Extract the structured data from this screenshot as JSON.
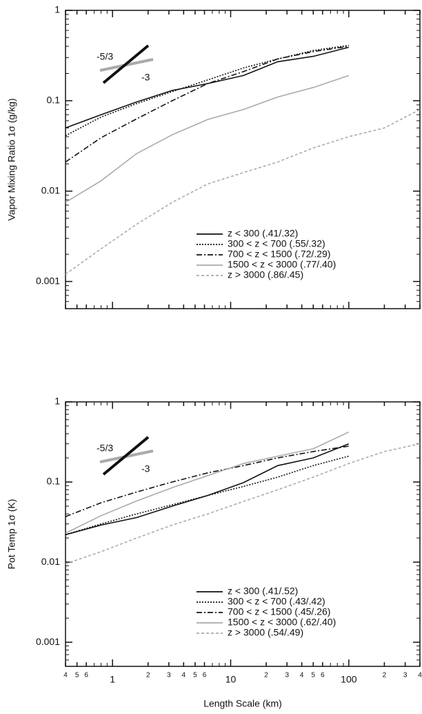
{
  "chart_data": [
    {
      "type": "line",
      "log_x": true,
      "log_y": true,
      "ylabel": "Vapor Mixing Ratio 1σ  (g/kg)",
      "slope_labels": [
        "-5/3",
        "-3"
      ],
      "xlim": [
        0.4,
        400
      ],
      "ylim": [
        0.0005,
        1
      ],
      "yticks": [
        0.001,
        0.01,
        0.1,
        1
      ],
      "x": [
        0.4,
        0.8,
        1.6,
        3.2,
        6.4,
        12.8,
        25,
        50,
        100,
        200,
        400
      ],
      "series": [
        {
          "name": "z < 300 (.41/.32)",
          "color": "#111111",
          "dash": "none",
          "values": [
            0.05,
            0.07,
            0.097,
            0.13,
            0.155,
            0.19,
            0.27,
            0.31,
            0.39,
            null,
            null
          ]
        },
        {
          "name": "300 <  z < 700 (.55/.32)",
          "color": "#111111",
          "dash": "2,2",
          "values": [
            0.041,
            0.066,
            0.093,
            0.126,
            0.17,
            0.23,
            0.29,
            0.36,
            0.41,
            null,
            null
          ]
        },
        {
          "name": "700 < z < 1500 (.72/.29)",
          "color": "#111111",
          "dash": "8,3,2,3",
          "values": [
            0.021,
            0.039,
            0.063,
            0.1,
            0.155,
            0.21,
            0.29,
            0.35,
            0.4,
            null,
            null
          ]
        },
        {
          "name": "1500 < z < 3000 (.77/.40)",
          "color": "#aaaaaa",
          "dash": "none",
          "values": [
            0.0075,
            0.013,
            0.026,
            0.042,
            0.062,
            0.08,
            0.11,
            0.14,
            0.19,
            null,
            null
          ]
        },
        {
          "name": "z > 3000 (.86/.45)",
          "color": "#aaaaaa",
          "dash": "4,3",
          "values": [
            0.0012,
            0.0023,
            0.0043,
            0.0075,
            0.012,
            0.016,
            0.021,
            0.03,
            0.04,
            0.05,
            0.08
          ]
        }
      ]
    },
    {
      "type": "line",
      "log_x": true,
      "log_y": true,
      "ylabel": "Pot Temp  1σ  (K)",
      "xlabel": "Length Scale (km)",
      "slope_labels": [
        "-5/3",
        "-3"
      ],
      "xlim": [
        0.4,
        400
      ],
      "ylim": [
        0.0005,
        1
      ],
      "yticks": [
        0.001,
        0.01,
        0.1,
        1
      ],
      "xticks": [
        {
          "value": 0.4,
          "label": "4"
        },
        {
          "value": 0.5,
          "label": "5"
        },
        {
          "value": 0.6,
          "label": "6"
        },
        1,
        2,
        3,
        4,
        5,
        6,
        10,
        {
          "value": 20,
          "label": "2"
        },
        {
          "value": 30,
          "label": "3"
        },
        {
          "value": 40,
          "label": "4"
        },
        {
          "value": 50,
          "label": "5"
        },
        {
          "value": 60,
          "label": "6"
        },
        100,
        {
          "value": 200,
          "label": "2"
        },
        {
          "value": 300,
          "label": "3"
        },
        {
          "value": 400,
          "label": "4"
        }
      ],
      "x": [
        0.4,
        0.8,
        1.6,
        3.2,
        6.4,
        12.8,
        25,
        50,
        100,
        200,
        400
      ],
      "series": [
        {
          "name": "z < 300 (.41/.52)",
          "color": "#111111",
          "dash": "none",
          "values": [
            0.022,
            0.029,
            0.036,
            0.05,
            0.068,
            0.098,
            0.16,
            0.2,
            0.3,
            null,
            null
          ]
        },
        {
          "name": "300 <  z < 700 (.43/.42)",
          "color": "#111111",
          "dash": "2,2",
          "values": [
            0.022,
            0.03,
            0.04,
            0.052,
            0.068,
            0.088,
            0.115,
            0.16,
            0.21,
            null,
            null
          ]
        },
        {
          "name": "700 < z < 1500 (.45/.26)",
          "color": "#111111",
          "dash": "8,3,2,3",
          "values": [
            0.037,
            0.055,
            0.075,
            0.1,
            0.13,
            0.16,
            0.2,
            0.24,
            0.28,
            null,
            null
          ]
        },
        {
          "name": "1500 < z < 3000 (.62/.40)",
          "color": "#aaaaaa",
          "dash": "none",
          "values": [
            0.023,
            0.038,
            0.058,
            0.085,
            0.12,
            0.17,
            0.21,
            0.26,
            0.42,
            null,
            null
          ]
        },
        {
          "name": "z > 3000 (.54/.49)",
          "color": "#aaaaaa",
          "dash": "4,3",
          "values": [
            0.0095,
            0.0135,
            0.02,
            0.029,
            0.04,
            0.057,
            0.08,
            0.115,
            0.17,
            0.24,
            0.3
          ]
        }
      ]
    }
  ]
}
